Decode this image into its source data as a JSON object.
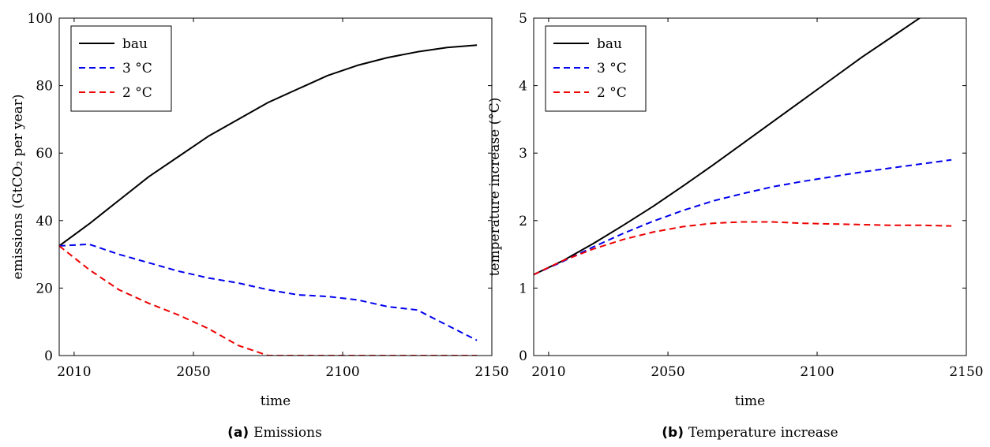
{
  "chart_data": [
    {
      "type": "line",
      "caption_tag": "(a)",
      "caption": "Emissions",
      "xlabel": "time",
      "ylabel": "emissions (GtCO₂ per year)",
      "xlim": [
        2005,
        2150
      ],
      "ylim": [
        0,
        100
      ],
      "xticks": [
        "2010",
        "2050",
        "2100",
        "2150"
      ],
      "xtick_values": [
        2010,
        2050,
        2100,
        2150
      ],
      "yticks": [
        "0",
        "20",
        "40",
        "60",
        "80",
        "100"
      ],
      "ytick_values": [
        0,
        20,
        40,
        60,
        80,
        100
      ],
      "legend_position": "top-left",
      "grid": false,
      "series": [
        {
          "name": "bau",
          "color": "#000000",
          "dash": "solid",
          "x": [
            2005,
            2015,
            2025,
            2035,
            2045,
            2055,
            2065,
            2075,
            2085,
            2095,
            2105,
            2115,
            2125,
            2135,
            2145
          ],
          "y": [
            32.5,
            39,
            46,
            53,
            59,
            65,
            70,
            75,
            79,
            83,
            86,
            88.3,
            90,
            91.3,
            92
          ]
        },
        {
          "name": "3 °C",
          "color": "#0000ee",
          "dash": "dashed",
          "x": [
            2005,
            2015,
            2025,
            2035,
            2045,
            2055,
            2065,
            2075,
            2085,
            2095,
            2105,
            2115,
            2125,
            2135,
            2145
          ],
          "y": [
            32.5,
            33,
            30,
            27.5,
            25,
            23,
            21.5,
            19.5,
            18,
            17.5,
            16.5,
            14.5,
            13.5,
            9,
            4.5
          ]
        },
        {
          "name": "2 °C",
          "color": "#ee0000",
          "dash": "dashed",
          "x": [
            2005,
            2015,
            2025,
            2035,
            2045,
            2055,
            2065,
            2075,
            2085,
            2095,
            2105,
            2115,
            2125,
            2135,
            2145
          ],
          "y": [
            32.5,
            25.5,
            19.5,
            15.5,
            12,
            8,
            3,
            0,
            0,
            0,
            0,
            0,
            0,
            0,
            0
          ]
        }
      ]
    },
    {
      "type": "line",
      "caption_tag": "(b)",
      "caption": "Temperature increase",
      "xlabel": "time",
      "ylabel": "temperature increase (°C)",
      "xlim": [
        2005,
        2150
      ],
      "ylim": [
        0,
        5
      ],
      "xticks": [
        "2010",
        "2050",
        "2100",
        "2150"
      ],
      "xtick_values": [
        2010,
        2050,
        2100,
        2150
      ],
      "yticks": [
        "0",
        "1",
        "2",
        "3",
        "4",
        "5"
      ],
      "ytick_values": [
        0,
        1,
        2,
        3,
        4,
        5
      ],
      "legend_position": "top-left",
      "grid": false,
      "series": [
        {
          "name": "bau",
          "color": "#000000",
          "dash": "solid",
          "x": [
            2005,
            2015,
            2025,
            2035,
            2045,
            2055,
            2065,
            2075,
            2085,
            2095,
            2105,
            2115,
            2125,
            2135,
            2140
          ],
          "y": [
            1.2,
            1.41,
            1.66,
            1.93,
            2.21,
            2.51,
            2.82,
            3.14,
            3.46,
            3.78,
            4.1,
            4.42,
            4.72,
            5.02,
            5.15
          ]
        },
        {
          "name": "3 °C",
          "color": "#0000ee",
          "dash": "dashed",
          "x": [
            2005,
            2015,
            2025,
            2035,
            2045,
            2055,
            2065,
            2075,
            2085,
            2095,
            2105,
            2115,
            2125,
            2135,
            2145
          ],
          "y": [
            1.2,
            1.4,
            1.61,
            1.81,
            1.99,
            2.15,
            2.29,
            2.4,
            2.5,
            2.58,
            2.65,
            2.72,
            2.78,
            2.84,
            2.9
          ]
        },
        {
          "name": "2 °C",
          "color": "#ee0000",
          "dash": "dashed",
          "x": [
            2005,
            2015,
            2025,
            2035,
            2045,
            2055,
            2065,
            2075,
            2085,
            2095,
            2105,
            2115,
            2125,
            2135,
            2145
          ],
          "y": [
            1.2,
            1.41,
            1.58,
            1.72,
            1.83,
            1.91,
            1.96,
            1.98,
            1.98,
            1.96,
            1.95,
            1.94,
            1.93,
            1.93,
            1.92
          ]
        }
      ]
    }
  ]
}
